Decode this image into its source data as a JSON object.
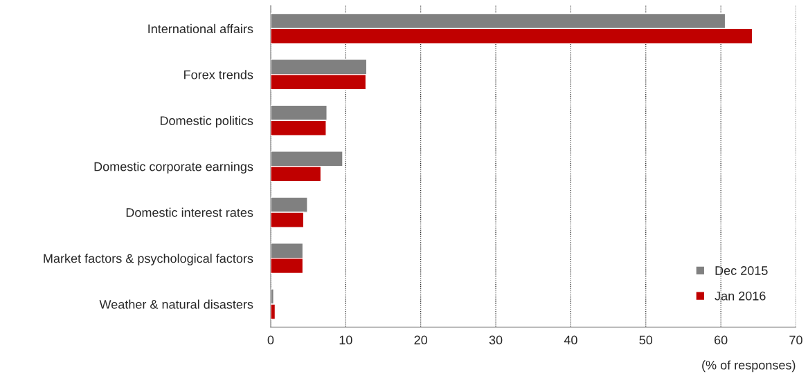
{
  "chart_data": {
    "type": "bar",
    "orientation": "horizontal",
    "categories": [
      "International affairs",
      "Forex trends",
      "Domestic politics",
      "Domestic corporate earnings",
      "Domestic interest rates",
      "Market factors & psychological factors",
      "Weather & natural disasters"
    ],
    "series": [
      {
        "name": "Dec 2015",
        "color": "#808080",
        "values": [
          60.6,
          12.8,
          7.5,
          9.6,
          4.9,
          4.3,
          0.4
        ]
      },
      {
        "name": "Jan 2016",
        "color": "#c00000",
        "values": [
          64.2,
          12.7,
          7.4,
          6.7,
          4.4,
          4.3,
          0.6
        ]
      }
    ],
    "xlim": [
      0,
      70
    ],
    "xticks": [
      0,
      10,
      20,
      30,
      40,
      50,
      60,
      70
    ],
    "xlabel": "(% of responses)",
    "grid": "x",
    "legend": "bottom right"
  }
}
